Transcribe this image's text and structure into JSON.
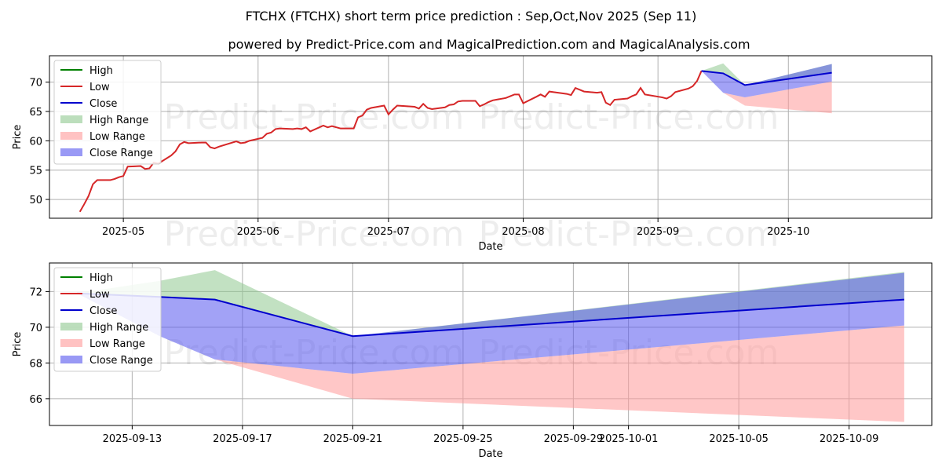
{
  "title": "FTCHX (FTCHX) short term price prediction : Sep,Oct,Nov 2025 (Sep 11)",
  "subtitle": "powered by Predict-Price.com and MagicalPrediction.com and MagicalAnalysis.com",
  "watermark": "Predict-Price.com",
  "colors": {
    "high": "#008000",
    "low": "#d62728",
    "close": "#0000cd",
    "high_range": "#90c890",
    "low_range": "#ff9999",
    "close_range": "#5555ee",
    "grid": "#b0b0b0"
  },
  "legend_labels": {
    "high": "High",
    "low": "Low",
    "close": "Close",
    "high_range": "High Range",
    "low_range": "Low Range",
    "close_range": "Close Range"
  },
  "chart_data": [
    {
      "type": "line",
      "xlabel": "Date",
      "ylabel": "Price",
      "xlim": [
        "2025-04-14",
        "2025-11-03"
      ],
      "ylim": [
        46.8,
        74.5
      ],
      "x_ticks": [
        "2025-05-01",
        "2025-06-01",
        "2025-07-01",
        "2025-08-01",
        "2025-09-01",
        "2025-10-01"
      ],
      "x_tick_labels": [
        "2025-05",
        "2025-06",
        "2025-07",
        "2025-08",
        "2025-09",
        "2025-10"
      ],
      "y_ticks": [
        50,
        55,
        60,
        65,
        70
      ],
      "y_tick_labels": [
        "50",
        "55",
        "60",
        "65",
        "70"
      ],
      "grid": true,
      "legend_position": "top-left",
      "history": {
        "x": [
          "2025-04-21",
          "2025-04-22",
          "2025-04-23",
          "2025-04-24",
          "2025-04-25",
          "2025-04-28",
          "2025-04-29",
          "2025-04-30",
          "2025-05-01",
          "2025-05-02",
          "2025-05-05",
          "2025-05-06",
          "2025-05-07",
          "2025-05-08",
          "2025-05-09",
          "2025-05-12",
          "2025-05-13",
          "2025-05-14",
          "2025-05-15",
          "2025-05-16",
          "2025-05-19",
          "2025-05-20",
          "2025-05-21",
          "2025-05-22",
          "2025-05-23",
          "2025-05-27",
          "2025-05-28",
          "2025-05-29",
          "2025-05-30",
          "2025-06-02",
          "2025-06-03",
          "2025-06-04",
          "2025-06-05",
          "2025-06-06",
          "2025-06-09",
          "2025-06-10",
          "2025-06-11",
          "2025-06-12",
          "2025-06-13",
          "2025-06-16",
          "2025-06-17",
          "2025-06-18",
          "2025-06-20",
          "2025-06-23",
          "2025-06-24",
          "2025-06-25",
          "2025-06-26",
          "2025-06-27",
          "2025-06-30",
          "2025-07-01",
          "2025-07-02",
          "2025-07-03",
          "2025-07-07",
          "2025-07-08",
          "2025-07-09",
          "2025-07-10",
          "2025-07-11",
          "2025-07-14",
          "2025-07-15",
          "2025-07-16",
          "2025-07-17",
          "2025-07-18",
          "2025-07-21",
          "2025-07-22",
          "2025-07-23",
          "2025-07-24",
          "2025-07-25",
          "2025-07-28",
          "2025-07-29",
          "2025-07-30",
          "2025-07-31",
          "2025-08-01",
          "2025-08-04",
          "2025-08-05",
          "2025-08-06",
          "2025-08-07",
          "2025-08-08",
          "2025-08-11",
          "2025-08-12",
          "2025-08-13",
          "2025-08-14",
          "2025-08-15",
          "2025-08-18",
          "2025-08-19",
          "2025-08-20",
          "2025-08-21",
          "2025-08-22",
          "2025-08-25",
          "2025-08-26",
          "2025-08-27",
          "2025-08-28",
          "2025-08-29",
          "2025-09-02",
          "2025-09-03",
          "2025-09-04",
          "2025-09-05",
          "2025-09-08",
          "2025-09-09",
          "2025-09-10",
          "2025-09-11"
        ],
        "low": [
          47.9,
          49.2,
          50.6,
          52.6,
          53.3,
          53.3,
          53.5,
          53.8,
          54.0,
          55.6,
          55.7,
          55.2,
          55.3,
          56.3,
          56.1,
          57.5,
          58.2,
          59.4,
          59.8,
          59.6,
          59.7,
          59.7,
          58.9,
          58.7,
          59.0,
          59.9,
          59.6,
          59.7,
          60.0,
          60.5,
          61.2,
          61.4,
          62.0,
          62.1,
          62.0,
          62.1,
          62.0,
          62.3,
          61.6,
          62.6,
          62.3,
          62.5,
          62.1,
          62.1,
          64.0,
          64.3,
          65.3,
          65.6,
          66.0,
          64.5,
          65.3,
          66.0,
          65.8,
          65.5,
          66.3,
          65.6,
          65.4,
          65.7,
          66.1,
          66.2,
          66.7,
          66.8,
          66.8,
          65.9,
          66.2,
          66.6,
          66.9,
          67.3,
          67.6,
          67.9,
          67.9,
          66.4,
          67.5,
          67.9,
          67.5,
          68.4,
          68.3,
          68.0,
          67.8,
          69.0,
          68.7,
          68.4,
          68.2,
          68.3,
          66.5,
          66.1,
          67.0,
          67.2,
          67.6,
          67.9,
          69.0,
          67.9,
          67.4,
          67.2,
          67.6,
          68.3,
          68.9,
          69.3,
          70.2,
          71.9
        ]
      },
      "forecast": {
        "x": [
          "2025-09-11",
          "2025-09-16",
          "2025-09-21",
          "2025-10-11"
        ],
        "high_range": {
          "upper": [
            71.9,
            73.2,
            69.5,
            73.1
          ],
          "lower": [
            71.9,
            71.5,
            69.5,
            71.6
          ]
        },
        "low_range": {
          "upper": [
            71.9,
            68.2,
            67.4,
            70.1
          ],
          "lower": [
            71.9,
            68.2,
            66.0,
            64.7
          ]
        },
        "close_range": {
          "upper": [
            71.9,
            71.5,
            69.5,
            73.1
          ],
          "lower": [
            71.9,
            68.2,
            67.4,
            70.1
          ]
        },
        "close": [
          71.9,
          71.5,
          69.5,
          71.6
        ]
      }
    },
    {
      "type": "line",
      "xlabel": "Date",
      "ylabel": "Price",
      "xlim": [
        "2025-09-10",
        "2025-10-12"
      ],
      "ylim": [
        64.5,
        73.6
      ],
      "x_ticks": [
        "2025-09-13",
        "2025-09-17",
        "2025-09-21",
        "2025-09-25",
        "2025-09-29",
        "2025-10-01",
        "2025-10-05",
        "2025-10-09"
      ],
      "x_tick_labels": [
        "2025-09-13",
        "2025-09-17",
        "2025-09-21",
        "2025-09-25",
        "2025-09-29",
        "2025-10-01",
        "2025-10-05",
        "2025-10-09"
      ],
      "y_ticks": [
        66,
        68,
        70,
        72
      ],
      "y_tick_labels": [
        "66",
        "68",
        "70",
        "72"
      ],
      "grid": true,
      "legend_position": "top-left",
      "forecast": {
        "x": [
          "2025-09-11",
          "2025-09-14",
          "2025-09-16",
          "2025-09-21",
          "2025-10-11"
        ],
        "high_range": {
          "upper": [
            71.9,
            72.6,
            73.2,
            69.5,
            73.1
          ],
          "lower": [
            71.9,
            71.7,
            71.55,
            69.5,
            71.55
          ]
        },
        "low_range": {
          "upper": [
            71.9,
            69.5,
            68.2,
            67.4,
            70.1
          ],
          "lower": [
            71.9,
            69.5,
            68.2,
            66.0,
            64.7
          ]
        },
        "close_range": {
          "upper": [
            71.9,
            71.7,
            71.55,
            69.5,
            73.05
          ],
          "lower": [
            71.9,
            69.5,
            68.2,
            67.4,
            70.1
          ]
        },
        "close": [
          71.9,
          71.7,
          71.55,
          69.5,
          71.55
        ]
      }
    }
  ]
}
